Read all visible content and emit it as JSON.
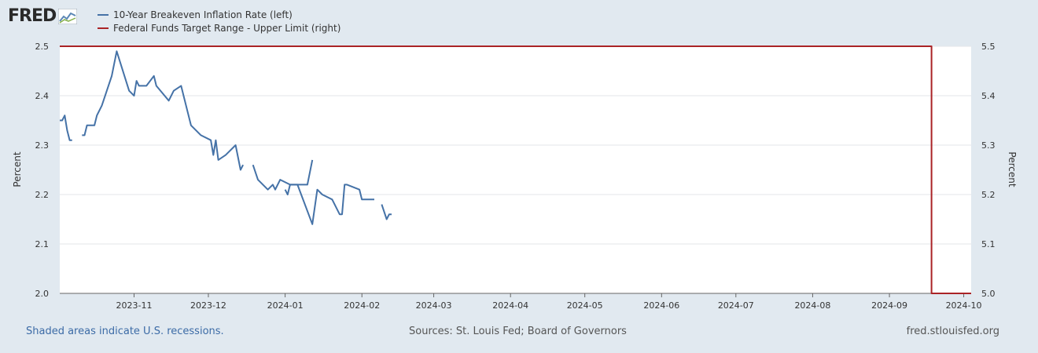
{
  "brand": {
    "logo_text": "FRED"
  },
  "legend": [
    {
      "label": "10-Year Breakeven Inflation Rate (left)",
      "color": "#4572a7"
    },
    {
      "label": "Federal Funds Target Range - Upper Limit (right)",
      "color": "#aa2326"
    }
  ],
  "footer": {
    "recession_note": "Shaded areas indicate U.S. recessions.",
    "sources": "Sources: St. Louis Fed; Board of Governors",
    "site": "fred.stlouisfed.org"
  },
  "chart_data": {
    "type": "line",
    "title": "",
    "xlabel": "",
    "ylabel_left": "Percent",
    "ylabel_right": "Percent",
    "x_range": [
      "2023-10-02",
      "2024-10-04"
    ],
    "ylim_left": [
      2.0,
      2.5
    ],
    "ylim_right": [
      5.0,
      5.5
    ],
    "yticks_left": [
      "2.0",
      "2.1",
      "2.2",
      "2.3",
      "2.4",
      "2.5"
    ],
    "yticks_right": [
      "5.0",
      "5.1",
      "5.2",
      "5.3",
      "5.4",
      "5.5"
    ],
    "xticks": [
      {
        "label": "2023-11",
        "date": "2023-11-01"
      },
      {
        "label": "2023-12",
        "date": "2023-12-01"
      },
      {
        "label": "2024-01",
        "date": "2024-01-01"
      },
      {
        "label": "2024-02",
        "date": "2024-02-01"
      },
      {
        "label": "2024-03",
        "date": "2024-03-01"
      },
      {
        "label": "2024-04",
        "date": "2024-04-01"
      },
      {
        "label": "2024-05",
        "date": "2024-05-01"
      },
      {
        "label": "2024-06",
        "date": "2024-06-01"
      },
      {
        "label": "2024-07",
        "date": "2024-07-01"
      },
      {
        "label": "2024-08",
        "date": "2024-08-01"
      },
      {
        "label": "2024-09",
        "date": "2024-09-01"
      },
      {
        "label": "2024-10",
        "date": "2024-10-01"
      }
    ],
    "grid": true,
    "legend_position": "top-left",
    "series": [
      {
        "name": "10-Year Breakeven Inflation Rate (left)",
        "axis": "left",
        "color": "#4572a7",
        "segments": [
          [
            [
              "2023-10-02",
              2.35
            ],
            [
              "2023-10-03",
              2.35
            ],
            [
              "2023-10-04",
              2.36
            ],
            [
              "2023-10-05",
              2.33
            ],
            [
              "2023-10-06",
              2.31
            ],
            [
              "2023-10-07",
              2.31
            ]
          ],
          [
            [
              "2023-10-11",
              2.32
            ],
            [
              "2023-10-12",
              2.32
            ],
            [
              "2023-10-13",
              2.34
            ],
            [
              "2023-10-16",
              2.34
            ],
            [
              "2023-10-17",
              2.36
            ],
            [
              "2023-10-19",
              2.38
            ],
            [
              "2023-10-23",
              2.44
            ],
            [
              "2023-10-25",
              2.49
            ],
            [
              "2023-10-30",
              2.41
            ],
            [
              "2023-11-01",
              2.4
            ],
            [
              "2023-11-02",
              2.43
            ],
            [
              "2023-11-03",
              2.42
            ],
            [
              "2023-11-06",
              2.42
            ],
            [
              "2023-11-09",
              2.44
            ],
            [
              "2023-11-10",
              2.42
            ],
            [
              "2023-11-15",
              2.39
            ],
            [
              "2023-11-17",
              2.41
            ],
            [
              "2023-11-20",
              2.42
            ],
            [
              "2023-11-24",
              2.34
            ],
            [
              "2023-11-28",
              2.32
            ],
            [
              "2023-12-02",
              2.31
            ],
            [
              "2023-12-03",
              2.28
            ],
            [
              "2023-12-04",
              2.31
            ],
            [
              "2023-12-05",
              2.27
            ],
            [
              "2023-12-08",
              2.28
            ],
            [
              "2023-12-12",
              2.3
            ],
            [
              "2023-12-14",
              2.25
            ],
            [
              "2023-12-15",
              2.26
            ]
          ],
          [
            [
              "2023-12-19",
              2.26
            ],
            [
              "2023-12-21",
              2.23
            ],
            [
              "2023-12-25",
              2.21
            ],
            [
              "2023-12-27",
              2.22
            ],
            [
              "2023-12-28",
              2.21
            ],
            [
              "2023-12-30",
              2.23
            ],
            [
              "2024-01-03",
              2.22
            ],
            [
              "2024-01-06",
              2.22
            ],
            [
              "2024-01-12",
              2.14
            ],
            [
              "2024-01-14",
              2.21
            ],
            [
              "2024-01-16",
              2.2
            ],
            [
              "2024-01-20",
              2.19
            ],
            [
              "2024-01-23",
              2.16
            ],
            [
              "2024-01-24",
              2.16
            ],
            [
              "2024-01-25",
              2.22
            ],
            [
              "2024-01-26",
              2.22
            ],
            [
              "2024-01-31",
              2.21
            ],
            [
              "2024-02-01",
              2.19
            ],
            [
              "2024-02-06",
              2.19
            ]
          ],
          [
            [
              "2024-02-09",
              2.18
            ],
            [
              "2024-02-11",
              2.15
            ],
            [
              "2024-02-12",
              2.16
            ],
            [
              "2024-02-13",
              2.16
            ]
          ],
          [
            [
              "2024-01-01",
              2.21
            ],
            [
              "2024-01-02",
              2.2
            ],
            [
              "2024-01-03",
              2.22
            ],
            [
              "2024-01-10",
              2.22
            ],
            [
              "2024-01-12",
              2.27
            ]
          ]
        ]
      },
      {
        "name": "Federal Funds Target Range - Upper Limit (right)",
        "axis": "right",
        "color": "#aa2326",
        "points": [
          [
            "2023-10-02",
            5.5
          ],
          [
            "2024-09-18",
            5.5
          ],
          [
            "2024-09-18",
            5.0
          ],
          [
            "2024-10-04",
            5.0
          ]
        ]
      }
    ]
  }
}
